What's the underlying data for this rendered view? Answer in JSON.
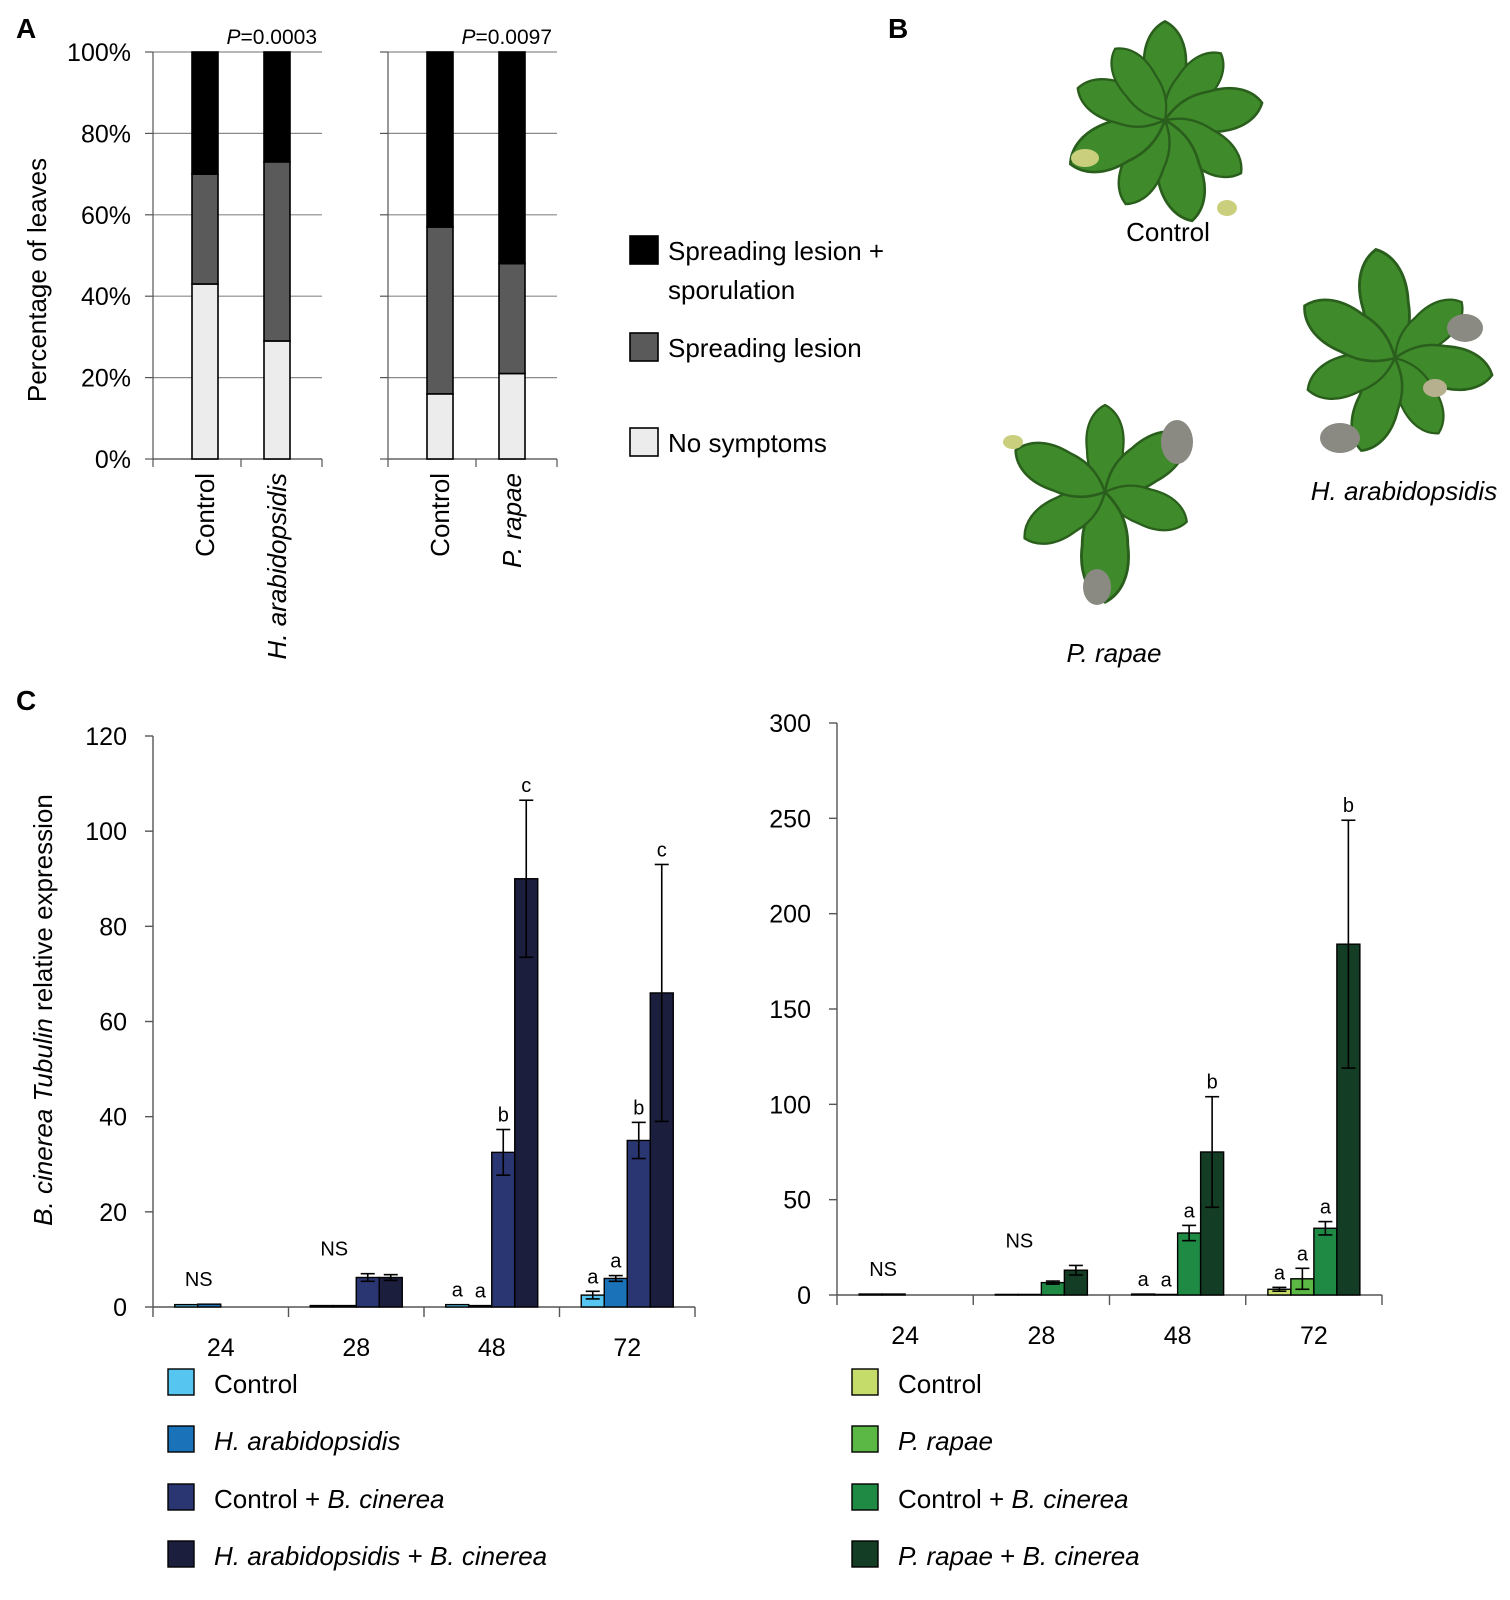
{
  "panels": {
    "a": "A",
    "b": "B",
    "c": "C"
  },
  "colors": {
    "full": "#000000",
    "lesion": "#5a5a5a",
    "none": "#ececec",
    "blue": [
      "#56c5f0",
      "#1a73b8",
      "#2a3672",
      "#1b1e3c"
    ],
    "green": [
      "#c6dc6a",
      "#5cb844",
      "#1f8a43",
      "#143d25"
    ]
  },
  "panelB": {
    "labels": [
      "Control",
      "H. arabidopsidis",
      "P. rapae"
    ],
    "plant_icons": [
      "rosette-control-icon",
      "rosette-h-arabidopsidis-icon",
      "rosette-p-rapae-icon"
    ]
  },
  "chart_data": [
    {
      "id": "A1",
      "type": "bar",
      "stacked": true,
      "ylabel": "Percentage of leaves",
      "yticks": [
        "0%",
        "20%",
        "40%",
        "60%",
        "80%",
        "100%"
      ],
      "ylim": [
        0,
        100
      ],
      "annotation": {
        "italic": "P",
        "text": "=0.0003"
      },
      "categories": [
        {
          "label": "Control",
          "italic": false
        },
        {
          "label": "H. arabidopsidis",
          "italic": true
        }
      ],
      "series": [
        {
          "name": "No symptoms",
          "values": [
            43,
            29
          ]
        },
        {
          "name": "Spreading lesion",
          "values": [
            27,
            44
          ]
        },
        {
          "name": "Spreading lesion + sporulation",
          "values": [
            30,
            27
          ]
        }
      ]
    },
    {
      "id": "A2",
      "type": "bar",
      "stacked": true,
      "yticks": [
        "0%",
        "20%",
        "40%",
        "60%",
        "80%",
        "100%"
      ],
      "ylim": [
        0,
        100
      ],
      "annotation": {
        "italic": "P",
        "text": "=0.0097"
      },
      "categories": [
        {
          "label": "Control",
          "italic": false
        },
        {
          "label": "P. rapae",
          "italic": true
        }
      ],
      "series": [
        {
          "name": "No symptoms",
          "values": [
            16,
            21
          ]
        },
        {
          "name": "Spreading lesion",
          "values": [
            41,
            27
          ]
        },
        {
          "name": "Spreading lesion + sporulation",
          "values": [
            43,
            52
          ]
        }
      ]
    },
    {
      "id": "C1",
      "type": "bar",
      "ylabel_italic": "B. cinerea Tubulin",
      "ylabel_rest": " relative expression",
      "ylim": [
        0,
        120
      ],
      "yticks": [
        "0",
        "20",
        "40",
        "60",
        "80",
        "100",
        "120"
      ],
      "categories": [
        "24",
        "28",
        "48",
        "72"
      ],
      "series": [
        {
          "name": "Control",
          "values": [
            0.5,
            0.3,
            0.5,
            2.5
          ],
          "err": [
            0,
            0,
            0,
            0.8
          ]
        },
        {
          "name": "H. arabidopsidis",
          "values": [
            0.6,
            0.3,
            0.3,
            6
          ],
          "err": [
            0,
            0,
            0,
            0.6
          ]
        },
        {
          "name": "Control + B. cinerea",
          "values": [
            0,
            6.2,
            32.5,
            35
          ],
          "err": [
            0,
            0.8,
            4.8,
            3.8
          ]
        },
        {
          "name": "H. arabidopsidis + B. cinerea",
          "values": [
            0,
            6.2,
            90,
            66
          ],
          "err": [
            0,
            0.6,
            16.5,
            27
          ]
        }
      ],
      "group_labels": [
        [
          "NS"
        ],
        [
          "NS"
        ],
        [
          "a",
          "a",
          "b",
          "c"
        ],
        [
          "a",
          "a",
          "b",
          "c"
        ]
      ]
    },
    {
      "id": "C2",
      "type": "bar",
      "ylim": [
        0,
        300
      ],
      "yticks": [
        "0",
        "50",
        "100",
        "150",
        "200",
        "250",
        "300"
      ],
      "categories": [
        "24",
        "28",
        "48",
        "72"
      ],
      "series": [
        {
          "name": "Control",
          "values": [
            0.5,
            0.3,
            0.5,
            3
          ],
          "err": [
            0,
            0,
            0,
            1
          ]
        },
        {
          "name": "P. rapae",
          "values": [
            0.5,
            0.3,
            0.3,
            8.5
          ],
          "err": [
            0,
            0,
            0,
            5.5
          ]
        },
        {
          "name": "Control + B. cinerea",
          "values": [
            0,
            6.5,
            32.5,
            35
          ],
          "err": [
            0,
            0.8,
            4,
            3.5
          ]
        },
        {
          "name": "P. rapae + B. cinerea",
          "values": [
            0,
            13,
            75,
            184
          ],
          "err": [
            0,
            2.5,
            29,
            65
          ]
        }
      ],
      "group_labels": [
        [
          "NS"
        ],
        [
          "NS"
        ],
        [
          "a",
          "a",
          "a",
          "b"
        ],
        [
          "a",
          "a",
          "a",
          "b"
        ]
      ]
    }
  ],
  "legendA": [
    {
      "lines": [
        "Spreading lesion +",
        "sporulation"
      ]
    },
    {
      "lines": [
        "Spreading lesion"
      ]
    },
    {
      "lines": [
        "No symptoms"
      ]
    }
  ],
  "legendC1": [
    {
      "parts": [
        {
          "t": "Control",
          "i": false
        }
      ]
    },
    {
      "parts": [
        {
          "t": "H. arabidopsidis",
          "i": true
        }
      ]
    },
    {
      "parts": [
        {
          "t": "Control + ",
          "i": false
        },
        {
          "t": "B. cinerea",
          "i": true
        }
      ]
    },
    {
      "parts": [
        {
          "t": "H. arabidopsidis",
          "i": true
        },
        {
          "t": " + ",
          "i": false
        },
        {
          "t": "B. cinerea",
          "i": true
        }
      ]
    }
  ],
  "legendC2": [
    {
      "parts": [
        {
          "t": "Control",
          "i": false
        }
      ]
    },
    {
      "parts": [
        {
          "t": "P. rapae",
          "i": true
        }
      ]
    },
    {
      "parts": [
        {
          "t": "Control + ",
          "i": false
        },
        {
          "t": "B. cinerea",
          "i": true
        }
      ]
    },
    {
      "parts": [
        {
          "t": "P. rapae",
          "i": true
        },
        {
          "t": " + ",
          "i": false
        },
        {
          "t": "B. cinerea",
          "i": true
        }
      ]
    }
  ]
}
